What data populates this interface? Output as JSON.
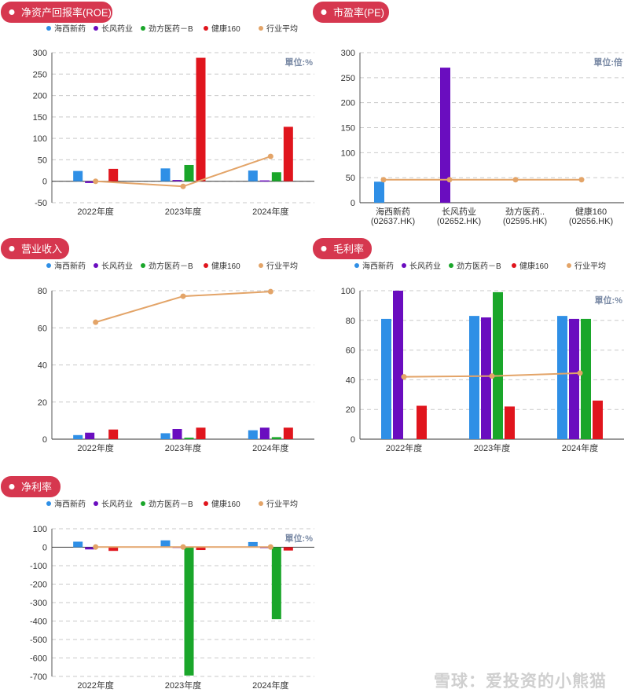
{
  "colors": {
    "series": [
      "#2f8fe6",
      "#6a0dbf",
      "#1aa62a",
      "#e0151d",
      "#e3a468"
    ],
    "badge": "#d6374f",
    "axis": "#555555",
    "grid": "#c9c9c9",
    "unit_text": "#7a8aa5"
  },
  "watermark": "雪球：爱投资的小熊猫",
  "chart_data": [
    {
      "type": "bar",
      "title": "净资产回报率(ROE)",
      "unit": "單位:%",
      "categories": [
        "2022年度",
        "2023年度",
        "2024年度"
      ],
      "legend": [
        "海西新药",
        "长风药业",
        "劲方医药－B",
        "健康160",
        "行业平均"
      ],
      "series": [
        {
          "name": "海西新药",
          "values": [
            24,
            30,
            25
          ]
        },
        {
          "name": "长风药业",
          "values": [
            -4,
            3,
            2
          ]
        },
        {
          "name": "劲方医药－B",
          "values": [
            null,
            38,
            21
          ]
        },
        {
          "name": "健康160",
          "values": [
            29,
            288,
            127
          ]
        },
        {
          "name": "行业平均",
          "type": "line",
          "values": [
            0,
            -12,
            58
          ]
        }
      ],
      "ylim": [
        -50,
        300
      ],
      "yticks": [
        -50,
        0,
        50,
        100,
        150,
        200,
        250,
        300
      ],
      "grid": true,
      "legend_position": "top"
    },
    {
      "type": "bar",
      "title": "市盈率(PE)",
      "unit": "單位:倍",
      "categories": [
        "海西新药\n(02637.HK)",
        "长风药业\n(02652.HK)",
        "劲方医药..\n(02595.HK)",
        "健康160\n(02656.HK)"
      ],
      "series": [
        {
          "name": "PE",
          "values": [
            42,
            270,
            null,
            null
          ],
          "colors": [
            "#2f8fe6",
            "#6a0dbf",
            "#1aa62a",
            "#e0151d"
          ]
        },
        {
          "name": "行业平均",
          "type": "line",
          "values": [
            46,
            46,
            46,
            46
          ]
        }
      ],
      "ylim": [
        0,
        300
      ],
      "yticks": [
        0,
        50,
        100,
        150,
        200,
        250,
        300
      ],
      "grid": true
    },
    {
      "type": "bar",
      "title": "营业收入",
      "unit": "",
      "categories": [
        "2022年度",
        "2023年度",
        "2024年度"
      ],
      "legend": [
        "海西新药",
        "长风药业",
        "劲方医药－B",
        "健康160",
        "行业平均"
      ],
      "series": [
        {
          "name": "海西新药",
          "values": [
            2.2,
            3.2,
            4.8
          ]
        },
        {
          "name": "长风药业",
          "values": [
            3.5,
            5.5,
            6.2
          ]
        },
        {
          "name": "劲方医药－B",
          "values": [
            null,
            0.8,
            1.1
          ]
        },
        {
          "name": "健康160",
          "values": [
            5.2,
            6.2,
            6.2
          ]
        },
        {
          "name": "行业平均",
          "type": "line",
          "values": [
            63,
            77,
            79.5
          ]
        }
      ],
      "ylim": [
        0,
        80
      ],
      "yticks": [
        0,
        20,
        40,
        60,
        80
      ],
      "grid": true,
      "legend_position": "top"
    },
    {
      "type": "bar",
      "title": "毛利率",
      "unit": "單位:%",
      "categories": [
        "2022年度",
        "2023年度",
        "2024年度"
      ],
      "legend": [
        "海西新药",
        "长风药业",
        "劲方医药－B",
        "健康160",
        "行业平均"
      ],
      "series": [
        {
          "name": "海西新药",
          "values": [
            81,
            83,
            83
          ]
        },
        {
          "name": "长风药业",
          "values": [
            100,
            82,
            81
          ]
        },
        {
          "name": "劲方医药－B",
          "values": [
            null,
            99,
            81
          ]
        },
        {
          "name": "健康160",
          "values": [
            22.5,
            22,
            26
          ]
        },
        {
          "name": "行业平均",
          "type": "line",
          "values": [
            42,
            42.5,
            44.5
          ]
        }
      ],
      "ylim": [
        0,
        100
      ],
      "yticks": [
        0,
        20,
        40,
        60,
        80,
        100
      ],
      "grid": true,
      "legend_position": "top"
    },
    {
      "type": "bar",
      "title": "净利率",
      "unit": "單位:%",
      "categories": [
        "2022年度",
        "2023年度",
        "2024年度"
      ],
      "legend": [
        "海西新药",
        "长风药业",
        "劲方医药－B",
        "健康160",
        "行业平均"
      ],
      "series": [
        {
          "name": "海西新药",
          "values": [
            30,
            37,
            28
          ]
        },
        {
          "name": "长风药业",
          "values": [
            -12,
            2,
            1
          ]
        },
        {
          "name": "劲方医药－B",
          "values": [
            null,
            -695,
            -390
          ]
        },
        {
          "name": "健康160",
          "values": [
            -20,
            -15,
            -18
          ]
        },
        {
          "name": "行业平均",
          "type": "line",
          "values": [
            1,
            1,
            1
          ]
        }
      ],
      "ylim": [
        -700,
        100
      ],
      "yticks": [
        -700,
        -600,
        -500,
        -400,
        -300,
        -200,
        -100,
        0,
        100
      ],
      "grid": true,
      "legend_position": "top"
    }
  ]
}
